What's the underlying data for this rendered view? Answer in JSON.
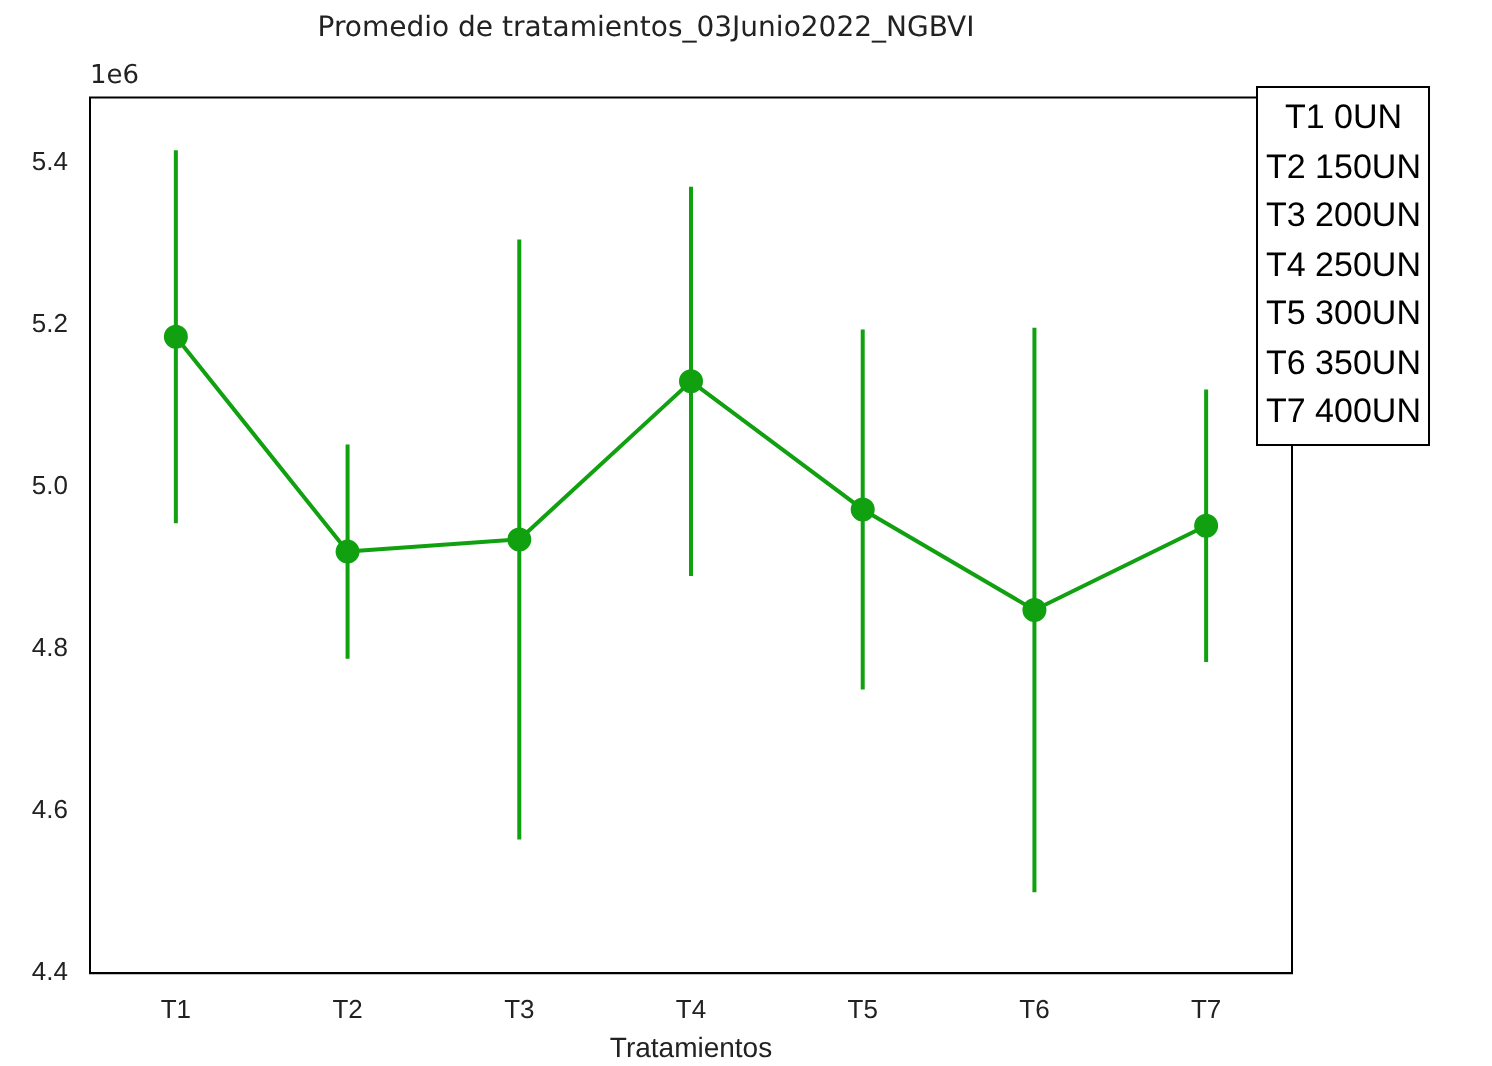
{
  "chart_data": {
    "type": "line",
    "title": "Promedio de tratamientos_03Junio2022_NGBVI",
    "xlabel": "Tratamientos",
    "categories": [
      "T1",
      "T2",
      "T3",
      "T4",
      "T5",
      "T6",
      "T7"
    ],
    "series": [
      {
        "color": "#10a010",
        "values": [
          5.185,
          4.92,
          4.935,
          5.13,
          4.972,
          4.848,
          4.952
        ],
        "errors": [
          0.23,
          0.132,
          0.37,
          0.24,
          0.222,
          0.348,
          0.168
        ]
      }
    ],
    "ylim": [
      4.4,
      5.48
    ],
    "yticks": [
      4.4,
      4.6,
      4.8,
      {
        "value": 5,
        "label": "5.0"
      },
      5.2,
      5.4
    ],
    "annotations": [
      "1e6",
      "T1 0UN",
      "T2 150UN",
      "T3 200UN",
      "T4 250UN",
      "T5 300UN",
      "T6 350UN",
      "T7 400UN"
    ],
    "marker": "circle",
    "line_style": "solid",
    "grid": false,
    "legend": false
  }
}
